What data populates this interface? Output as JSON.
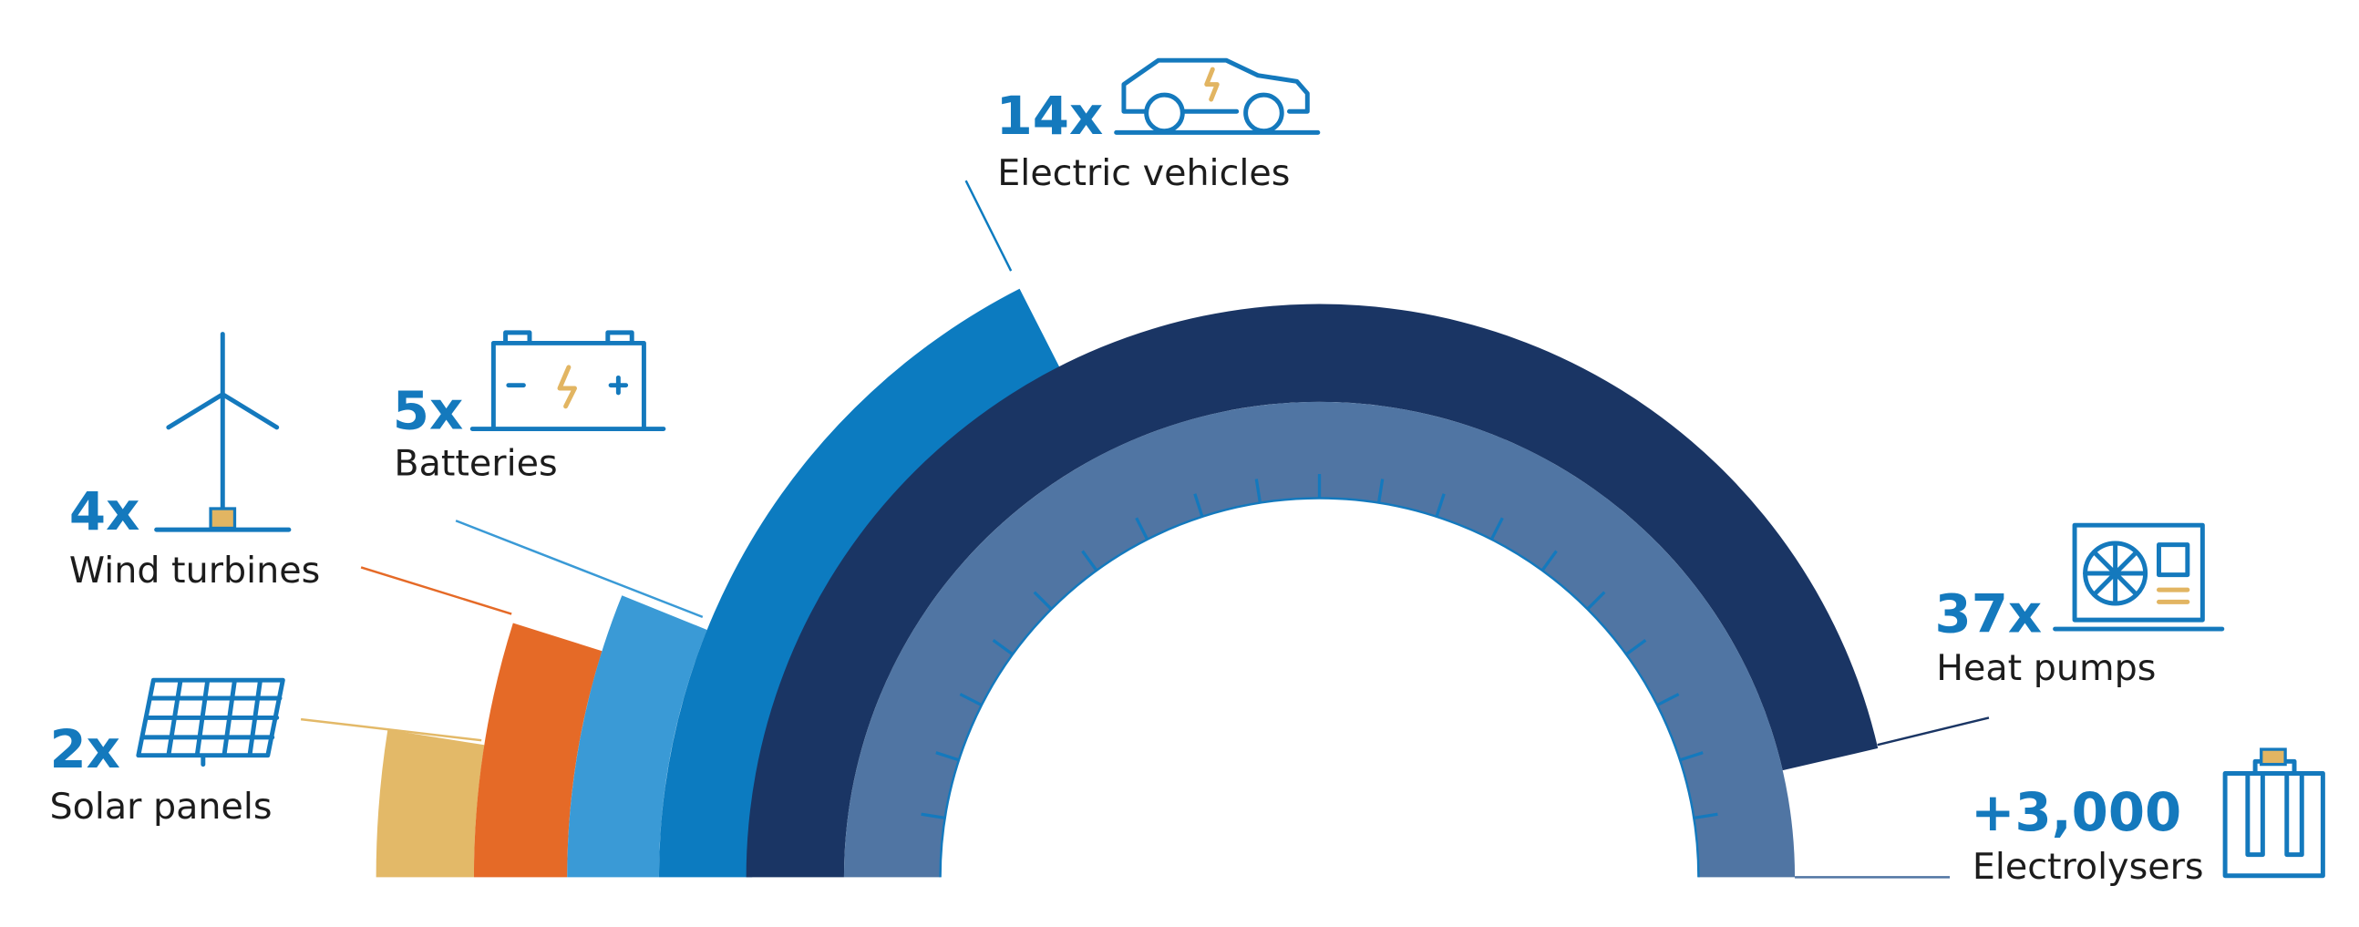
{
  "items": [
    {
      "value": "2x",
      "label": "Solar panels"
    },
    {
      "value": "4x",
      "label": "Wind turbines"
    },
    {
      "value": "5x",
      "label": "Batteries"
    },
    {
      "value": "14x",
      "label": "Electric vehicles"
    },
    {
      "value": "37x",
      "label": "Heat pumps"
    },
    {
      "value": "+3,000",
      "label": "Electrolysers"
    }
  ]
}
